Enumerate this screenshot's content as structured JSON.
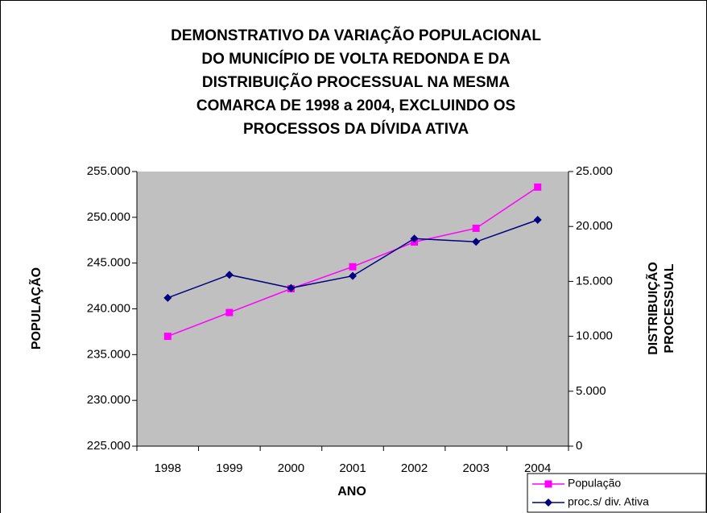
{
  "chart_data": {
    "type": "line",
    "title": [
      "DEMONSTRATIVO DA VARIAÇÃO POPULACIONAL",
      "DO MUNICÍPIO DE VOLTA REDONDA E DA",
      "DISTRIBUIÇÃO PROCESSUAL NA MESMA",
      "COMARCA DE 1998 a 2004, EXCLUINDO OS",
      "PROCESSOS DA DÍVIDA ATIVA"
    ],
    "x_label": "ANO",
    "y_label": "POPULAÇÃO",
    "y2_label": [
      "DISTRIBUIÇÃO",
      "PROCESSUAL"
    ],
    "categories": [
      "1998",
      "1999",
      "2000",
      "2001",
      "2002",
      "2003",
      "2004"
    ],
    "series": [
      {
        "name": "População",
        "color": "#ff00ff",
        "marker": "square",
        "values": [
          237000,
          239600,
          242200,
          244600,
          247300,
          248800,
          253300
        ]
      },
      {
        "name": "proc.s/ div. Ativa",
        "color": "#000080",
        "marker": "diamond",
        "axis": "y2",
        "values": [
          13500,
          15600,
          14400,
          15500,
          18900,
          18600,
          20600
        ]
      }
    ],
    "ylim": [
      225000,
      255000
    ],
    "yticks": [
      {
        "value": 225000,
        "label": "225.000"
      },
      {
        "value": 230000,
        "label": "230.000"
      },
      {
        "value": 235000,
        "label": "235.000"
      },
      {
        "value": 240000,
        "label": "240.000"
      },
      {
        "value": 245000,
        "label": "245.000"
      },
      {
        "value": 250000,
        "label": "250.000"
      },
      {
        "value": 255000,
        "label": "255.000"
      }
    ],
    "y2lim": [
      0,
      25000
    ],
    "y2ticks": [
      0,
      {
        "value": 5000,
        "label": "5.000"
      },
      {
        "value": 10000,
        "label": "10.000"
      },
      {
        "value": 15000,
        "label": "15.000"
      },
      {
        "value": 20000,
        "label": "20.000"
      },
      {
        "value": 25000,
        "label": "25.000"
      }
    ],
    "plot_background": "#c0c0c0",
    "legend": "bottom-right"
  }
}
